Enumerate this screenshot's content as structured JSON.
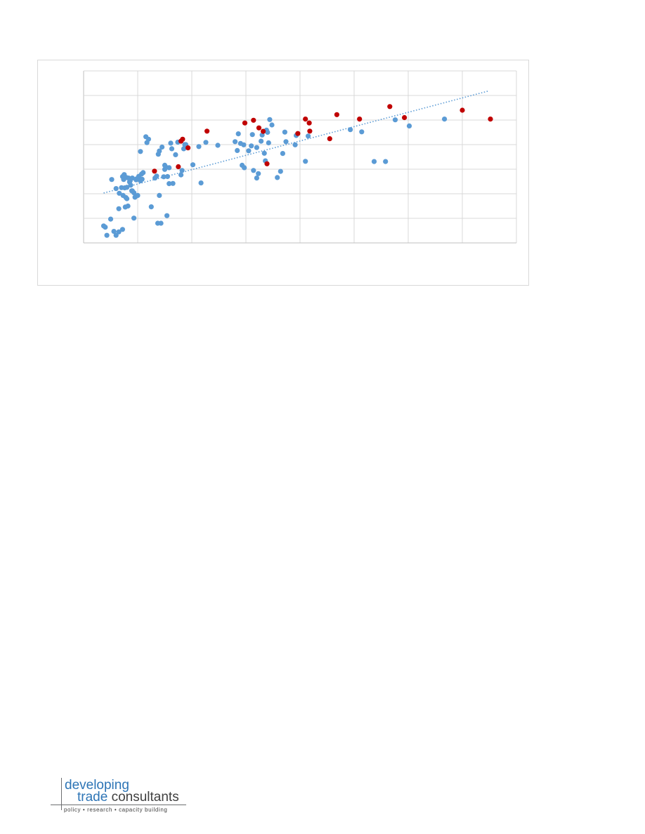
{
  "chart_data": {
    "type": "scatter",
    "title": "",
    "xlabel": "",
    "ylabel": "",
    "xlim": [
      0,
      8
    ],
    "ylim": [
      0,
      7
    ],
    "grid": true,
    "legend": "none",
    "tick_labels_visible": false,
    "series": [
      {
        "color": "#5b9bd5",
        "points": [
          [
            0.37,
            0.69
          ],
          [
            0.4,
            0.64
          ],
          [
            0.43,
            0.31
          ],
          [
            0.5,
            0.97
          ],
          [
            0.52,
            2.58
          ],
          [
            0.56,
            0.47
          ],
          [
            0.6,
            2.21
          ],
          [
            0.6,
            0.31
          ],
          [
            0.65,
            0.45
          ],
          [
            0.65,
            1.39
          ],
          [
            0.66,
            2.02
          ],
          [
            0.7,
            2.25
          ],
          [
            0.72,
            2.7
          ],
          [
            0.72,
            0.55
          ],
          [
            0.73,
            1.93
          ],
          [
            0.74,
            2.58
          ],
          [
            0.75,
            2.78
          ],
          [
            0.76,
            2.24
          ],
          [
            0.77,
            1.46
          ],
          [
            0.78,
            1.85
          ],
          [
            0.79,
            2.66
          ],
          [
            0.8,
            1.8
          ],
          [
            0.8,
            2.26
          ],
          [
            0.82,
            1.5
          ],
          [
            0.83,
            2.64
          ],
          [
            0.85,
            2.48
          ],
          [
            0.86,
            2.52
          ],
          [
            0.87,
            2.35
          ],
          [
            0.89,
            2.12
          ],
          [
            0.9,
            2.12
          ],
          [
            0.9,
            2.64
          ],
          [
            0.93,
            2.04
          ],
          [
            0.93,
            1.01
          ],
          [
            0.95,
            1.86
          ],
          [
            0.97,
            2.57
          ],
          [
            0.98,
            2.61
          ],
          [
            1.0,
            1.93
          ],
          [
            1.02,
            2.71
          ],
          [
            1.05,
            2.53
          ],
          [
            1.05,
            3.72
          ],
          [
            1.07,
            2.8
          ],
          [
            1.08,
            2.59
          ],
          [
            1.1,
            2.86
          ],
          [
            1.15,
            4.32
          ],
          [
            1.17,
            4.08
          ],
          [
            1.2,
            4.22
          ],
          [
            1.25,
            1.47
          ],
          [
            1.32,
            2.64
          ],
          [
            1.35,
            2.72
          ],
          [
            1.37,
            0.8
          ],
          [
            1.38,
            3.61
          ],
          [
            1.4,
            3.74
          ],
          [
            1.4,
            1.93
          ],
          [
            1.43,
            0.8
          ],
          [
            1.45,
            3.9
          ],
          [
            1.48,
            2.69
          ],
          [
            1.5,
            3.16
          ],
          [
            1.5,
            2.99
          ],
          [
            1.52,
            3.09
          ],
          [
            1.54,
            1.11
          ],
          [
            1.55,
            2.7
          ],
          [
            1.58,
            3.06
          ],
          [
            1.58,
            2.41
          ],
          [
            1.61,
            4.06
          ],
          [
            1.63,
            3.83
          ],
          [
            1.65,
            2.42
          ],
          [
            1.7,
            3.59
          ],
          [
            1.74,
            4.1
          ],
          [
            1.8,
            2.77
          ],
          [
            1.82,
            2.95
          ],
          [
            1.85,
            3.83
          ],
          [
            1.87,
            4.0
          ],
          [
            1.89,
            4.0
          ],
          [
            2.02,
            3.18
          ],
          [
            2.13,
            3.92
          ],
          [
            2.17,
            2.44
          ],
          [
            2.26,
            4.09
          ],
          [
            2.48,
            3.97
          ],
          [
            2.8,
            4.12
          ],
          [
            2.84,
            3.76
          ],
          [
            2.86,
            4.44
          ],
          [
            2.9,
            4.05
          ],
          [
            2.93,
            3.16
          ],
          [
            2.96,
            3.99
          ],
          [
            2.97,
            3.06
          ],
          [
            3.05,
            3.75
          ],
          [
            3.1,
            3.95
          ],
          [
            3.12,
            4.41
          ],
          [
            3.14,
            2.95
          ],
          [
            3.2,
            2.64
          ],
          [
            3.2,
            3.88
          ],
          [
            3.23,
            2.82
          ],
          [
            3.28,
            4.14
          ],
          [
            3.3,
            4.39
          ],
          [
            3.34,
            3.65
          ],
          [
            3.36,
            3.34
          ],
          [
            3.38,
            4.59
          ],
          [
            3.4,
            4.5
          ],
          [
            3.42,
            4.07
          ],
          [
            3.44,
            5.02
          ],
          [
            3.48,
            4.8
          ],
          [
            3.58,
            2.66
          ],
          [
            3.64,
            2.91
          ],
          [
            3.68,
            3.64
          ],
          [
            3.72,
            4.51
          ],
          [
            3.74,
            4.12
          ],
          [
            3.91,
            3.99
          ],
          [
            3.93,
            4.37
          ],
          [
            4.1,
            3.32
          ],
          [
            4.15,
            4.35
          ],
          [
            4.93,
            4.61
          ],
          [
            5.14,
            4.52
          ],
          [
            5.37,
            3.31
          ],
          [
            5.58,
            3.31
          ],
          [
            5.76,
            5.01
          ],
          [
            6.02,
            4.76
          ],
          [
            6.67,
            5.04
          ]
        ]
      },
      {
        "color": "#c00000",
        "points": [
          [
            1.31,
            2.92
          ],
          [
            1.75,
            3.1
          ],
          [
            1.8,
            4.14
          ],
          [
            1.83,
            4.22
          ],
          [
            1.93,
            3.87
          ],
          [
            2.28,
            4.55
          ],
          [
            2.98,
            4.88
          ],
          [
            3.14,
            4.99
          ],
          [
            3.24,
            4.68
          ],
          [
            3.32,
            4.54
          ],
          [
            3.39,
            3.22
          ],
          [
            3.96,
            4.45
          ],
          [
            4.1,
            5.04
          ],
          [
            4.17,
            4.88
          ],
          [
            4.18,
            4.55
          ],
          [
            4.55,
            4.24
          ],
          [
            4.68,
            5.22
          ],
          [
            5.1,
            5.04
          ],
          [
            5.66,
            5.55
          ],
          [
            5.93,
            5.1
          ],
          [
            7.0,
            5.4
          ],
          [
            7.52,
            5.04
          ]
        ]
      }
    ],
    "trendline": {
      "type": "linear",
      "color": "#5b9bd5",
      "style": "dotted",
      "x": [
        0.37,
        7.48
      ],
      "y": [
        2.03,
        6.18
      ]
    }
  },
  "logo": {
    "line1": "developing",
    "line2_word1": "trade",
    "line2_word2": "consultants",
    "tagline": "policy  •  research  •  capacity building"
  }
}
